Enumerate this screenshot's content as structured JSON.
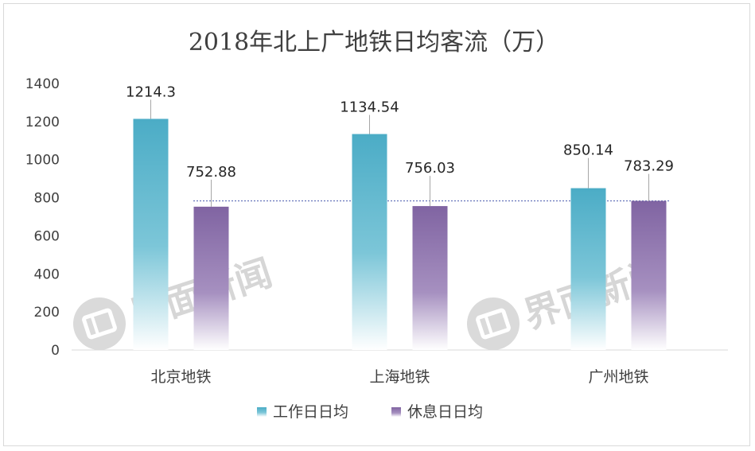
{
  "watermark": {
    "text": "界面新闻"
  },
  "chart_data": {
    "type": "bar",
    "title": "2018年北上广地铁日均客流（万）",
    "categories": [
      "北京地铁",
      "上海地铁",
      "广州地铁"
    ],
    "series": [
      {
        "name": "工作日日均",
        "values": [
          1214.3,
          1134.54,
          850.14
        ],
        "color": "#4bacc6"
      },
      {
        "name": "休息日日均",
        "values": [
          752.88,
          756.03,
          783.29
        ],
        "color": "#8064a2"
      }
    ],
    "data_labels": [
      [
        "1214.3",
        "1134.54",
        "850.14"
      ],
      [
        "752.88",
        "756.03",
        "783.29"
      ]
    ],
    "reference_line": {
      "value": 783.29,
      "style": "dotted",
      "color": "#5b6bb5"
    },
    "ylim": [
      0,
      1400
    ],
    "yticks": [
      "0",
      "200",
      "400",
      "600",
      "800",
      "1000",
      "1200",
      "1400"
    ],
    "ytick_values": [
      0,
      200,
      400,
      600,
      800,
      1000,
      1200,
      1400
    ],
    "grid": false,
    "legend_position": "bottom",
    "xlabel": "",
    "ylabel": ""
  }
}
